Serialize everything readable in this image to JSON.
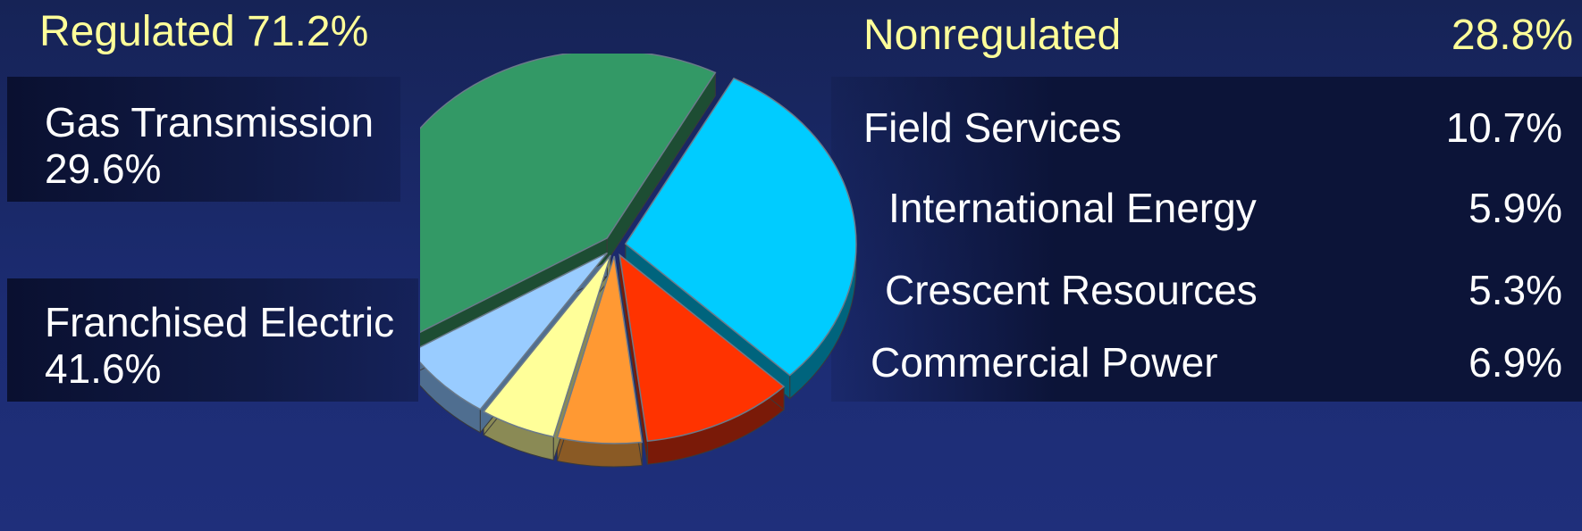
{
  "regulated": {
    "header": "Regulated 71.2%",
    "items": [
      {
        "name": "Gas Transmission",
        "pct": "29.6%"
      },
      {
        "name": "Franchised Electric",
        "pct": "41.6%"
      }
    ]
  },
  "nonregulated": {
    "header_label": "Nonregulated",
    "header_pct": "28.8%",
    "items": [
      {
        "name": "Field Services",
        "pct": "10.7%"
      },
      {
        "name": "International Energy",
        "pct": "5.9%"
      },
      {
        "name": "Crescent Resources",
        "pct": "5.3%"
      },
      {
        "name": "Commercial Power",
        "pct": "6.9%"
      }
    ]
  },
  "chart_data": {
    "type": "pie",
    "style": "3d exploded",
    "slices": [
      {
        "label": "Gas Transmission",
        "value": 29.6,
        "color": "#00ccff",
        "side": "#00647d"
      },
      {
        "label": "Field Services",
        "value": 10.7,
        "color": "#ff3300",
        "side": "#7a1a08"
      },
      {
        "label": "International Energy",
        "value": 5.9,
        "color": "#ff9933",
        "side": "#8a5a25"
      },
      {
        "label": "Crescent Resources",
        "value": 5.3,
        "color": "#ffff99",
        "side": "#8a8a55"
      },
      {
        "label": "Commercial Power",
        "value": 6.9,
        "color": "#99ccff",
        "side": "#4f6e90"
      },
      {
        "label": "Franchised Electric",
        "value": 41.6,
        "color": "#339966",
        "side": "#1d4d33"
      }
    ],
    "group_totals": {
      "Regulated": 71.2,
      "Nonregulated": 28.8
    }
  }
}
